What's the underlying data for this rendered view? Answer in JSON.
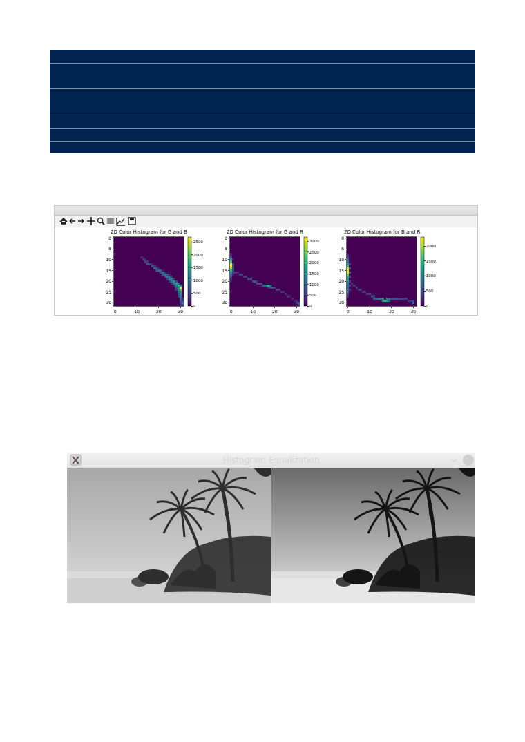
{
  "chart_data": [
    {
      "type": "heatmap",
      "title": "2D Color Histogram for G and B",
      "color": "Viridis",
      "xlim": [
        -0.5,
        31.5
      ],
      "ylim": [
        31.5,
        -0.5
      ],
      "xticks": [
        0,
        10,
        20,
        30
      ],
      "yticks": [
        0,
        5,
        10,
        15,
        20,
        25,
        30
      ],
      "colorbar": {
        "range": [
          0,
          2700
        ],
        "ticks": [
          0,
          500,
          1000,
          1500,
          2000,
          2500
        ]
      },
      "cells": [
        [
          9,
          12,
          300
        ],
        [
          9,
          13,
          200
        ],
        [
          10,
          13,
          400
        ],
        [
          10,
          14,
          300
        ],
        [
          11,
          14,
          500
        ],
        [
          11,
          15,
          400
        ],
        [
          12,
          15,
          600
        ],
        [
          12,
          16,
          500
        ],
        [
          12,
          17,
          200
        ],
        [
          13,
          17,
          700
        ],
        [
          13,
          18,
          500
        ],
        [
          13,
          19,
          200
        ],
        [
          14,
          18,
          800
        ],
        [
          14,
          19,
          700
        ],
        [
          14,
          20,
          300
        ],
        [
          15,
          19,
          600
        ],
        [
          15,
          20,
          900
        ],
        [
          15,
          21,
          700
        ],
        [
          15,
          22,
          200
        ],
        [
          16,
          21,
          800
        ],
        [
          16,
          22,
          1000
        ],
        [
          16,
          23,
          400
        ],
        [
          17,
          22,
          700
        ],
        [
          17,
          23,
          1100
        ],
        [
          17,
          24,
          600
        ],
        [
          17,
          25,
          200
        ],
        [
          18,
          23,
          600
        ],
        [
          18,
          24,
          1200
        ],
        [
          18,
          25,
          900
        ],
        [
          18,
          26,
          300
        ],
        [
          19,
          24,
          500
        ],
        [
          19,
          25,
          1100
        ],
        [
          19,
          26,
          1200
        ],
        [
          19,
          27,
          400
        ],
        [
          20,
          25,
          400
        ],
        [
          20,
          26,
          1000
        ],
        [
          20,
          27,
          1400
        ],
        [
          20,
          28,
          600
        ],
        [
          21,
          26,
          300
        ],
        [
          21,
          27,
          1000
        ],
        [
          21,
          28,
          1500
        ],
        [
          21,
          29,
          800
        ],
        [
          22,
          27,
          300
        ],
        [
          22,
          28,
          1100
        ],
        [
          22,
          29,
          1700
        ],
        [
          22,
          30,
          1200
        ],
        [
          23,
          28,
          600
        ],
        [
          23,
          29,
          1500
        ],
        [
          23,
          30,
          2700
        ],
        [
          24,
          28,
          400
        ],
        [
          24,
          29,
          1300
        ],
        [
          24,
          30,
          1900
        ],
        [
          25,
          29,
          1000
        ],
        [
          25,
          30,
          1500
        ],
        [
          26,
          29,
          700
        ],
        [
          26,
          30,
          1300
        ],
        [
          27,
          29,
          500
        ],
        [
          27,
          30,
          1100
        ],
        [
          28,
          30,
          900
        ],
        [
          28,
          31,
          300
        ],
        [
          29,
          30,
          700
        ],
        [
          29,
          31,
          500
        ],
        [
          30,
          30,
          500
        ],
        [
          30,
          31,
          1200
        ],
        [
          31,
          30,
          300
        ],
        [
          31,
          31,
          600
        ]
      ]
    },
    {
      "type": "heatmap",
      "title": "2D Color Histogram for G and R",
      "color": "Viridis",
      "xlim": [
        -0.5,
        31.5
      ],
      "ylim": [
        31.5,
        -0.5
      ],
      "xticks": [
        0,
        10,
        20,
        30
      ],
      "yticks": [
        0,
        5,
        10,
        15,
        20,
        25,
        30
      ],
      "colorbar": {
        "range": [
          0,
          3200
        ],
        "ticks": [
          0,
          500,
          1000,
          1500,
          2000,
          2500,
          3000
        ]
      },
      "cells": [
        [
          8,
          0,
          300
        ],
        [
          9,
          0,
          800
        ],
        [
          10,
          0,
          1500
        ],
        [
          11,
          0,
          2200
        ],
        [
          12,
          0,
          3000
        ],
        [
          13,
          0,
          3200
        ],
        [
          14,
          0,
          2800
        ],
        [
          15,
          0,
          2000
        ],
        [
          16,
          0,
          1500
        ],
        [
          17,
          0,
          1000
        ],
        [
          18,
          0,
          600
        ],
        [
          19,
          0,
          400
        ],
        [
          20,
          0,
          200
        ],
        [
          10,
          1,
          300
        ],
        [
          12,
          1,
          800
        ],
        [
          13,
          1,
          900
        ],
        [
          14,
          1,
          1000
        ],
        [
          15,
          1,
          800
        ],
        [
          16,
          1,
          600
        ],
        [
          17,
          1,
          300
        ],
        [
          16,
          2,
          500
        ],
        [
          16,
          3,
          400
        ],
        [
          17,
          4,
          600
        ],
        [
          17,
          5,
          500
        ],
        [
          18,
          6,
          600
        ],
        [
          18,
          7,
          500
        ],
        [
          19,
          8,
          600
        ],
        [
          19,
          9,
          700
        ],
        [
          20,
          10,
          700
        ],
        [
          20,
          11,
          800
        ],
        [
          20,
          12,
          300
        ],
        [
          21,
          12,
          800
        ],
        [
          21,
          13,
          900
        ],
        [
          21,
          14,
          700
        ],
        [
          22,
          14,
          300
        ],
        [
          22,
          15,
          900
        ],
        [
          22,
          16,
          1300
        ],
        [
          22,
          17,
          2000
        ],
        [
          22,
          18,
          1200
        ],
        [
          23,
          17,
          400
        ],
        [
          23,
          18,
          700
        ],
        [
          23,
          19,
          800
        ],
        [
          23,
          20,
          600
        ],
        [
          24,
          21,
          600
        ],
        [
          24,
          22,
          500
        ],
        [
          25,
          23,
          500
        ],
        [
          25,
          24,
          400
        ],
        [
          26,
          25,
          400
        ],
        [
          27,
          26,
          400
        ],
        [
          27,
          27,
          300
        ],
        [
          28,
          28,
          300
        ],
        [
          29,
          29,
          300
        ],
        [
          29,
          30,
          400
        ],
        [
          30,
          30,
          500
        ],
        [
          30,
          31,
          1000
        ],
        [
          31,
          31,
          700
        ]
      ]
    },
    {
      "type": "heatmap",
      "title": "2D Color Histogram for B and R",
      "color": "Viridis",
      "xlim": [
        -0.5,
        31.5
      ],
      "ylim": [
        31.5,
        -0.5
      ],
      "xticks": [
        0,
        10,
        20,
        30
      ],
      "yticks": [
        0,
        5,
        10,
        15,
        20,
        25,
        30
      ],
      "colorbar": {
        "range": [
          0,
          2300
        ],
        "ticks": [
          0,
          500,
          1000,
          1500,
          2000
        ]
      },
      "cells": [
        [
          8,
          0,
          300
        ],
        [
          9,
          0,
          500
        ],
        [
          10,
          0,
          700
        ],
        [
          11,
          0,
          900
        ],
        [
          12,
          0,
          1200
        ],
        [
          13,
          0,
          1600
        ],
        [
          14,
          0,
          2100
        ],
        [
          15,
          0,
          2300
        ],
        [
          16,
          0,
          2200
        ],
        [
          17,
          0,
          1800
        ],
        [
          18,
          0,
          1500
        ],
        [
          19,
          0,
          1200
        ],
        [
          20,
          0,
          1100
        ],
        [
          21,
          0,
          1000
        ],
        [
          22,
          0,
          900
        ],
        [
          23,
          0,
          900
        ],
        [
          24,
          0,
          800
        ],
        [
          25,
          0,
          700
        ],
        [
          26,
          0,
          500
        ],
        [
          27,
          0,
          300
        ],
        [
          12,
          1,
          400
        ],
        [
          14,
          1,
          600
        ],
        [
          16,
          1,
          700
        ],
        [
          18,
          1,
          500
        ],
        [
          20,
          1,
          400
        ],
        [
          22,
          1,
          400
        ],
        [
          24,
          1,
          300
        ],
        [
          21,
          2,
          300
        ],
        [
          22,
          3,
          300
        ],
        [
          23,
          4,
          400
        ],
        [
          24,
          5,
          400
        ],
        [
          24,
          6,
          300
        ],
        [
          25,
          7,
          400
        ],
        [
          25,
          8,
          400
        ],
        [
          26,
          9,
          400
        ],
        [
          26,
          10,
          500
        ],
        [
          27,
          11,
          500
        ],
        [
          27,
          12,
          400
        ],
        [
          28,
          12,
          600
        ],
        [
          28,
          13,
          700
        ],
        [
          28,
          14,
          900
        ],
        [
          28,
          15,
          1000
        ],
        [
          28,
          16,
          1200
        ],
        [
          29,
          16,
          1100
        ],
        [
          29,
          17,
          1600
        ],
        [
          29,
          18,
          1300
        ],
        [
          28,
          18,
          900
        ],
        [
          28,
          19,
          800
        ],
        [
          29,
          19,
          700
        ],
        [
          28,
          20,
          700
        ],
        [
          28,
          21,
          600
        ],
        [
          28,
          22,
          600
        ],
        [
          28,
          23,
          500
        ],
        [
          28,
          24,
          500
        ],
        [
          28,
          25,
          500
        ],
        [
          28,
          26,
          400
        ],
        [
          28,
          27,
          400
        ],
        [
          29,
          28,
          400
        ],
        [
          29,
          29,
          500
        ],
        [
          29,
          30,
          500
        ],
        [
          30,
          30,
          800
        ]
      ]
    }
  ],
  "equalization_window": {
    "title": "Histogram Equalization"
  }
}
